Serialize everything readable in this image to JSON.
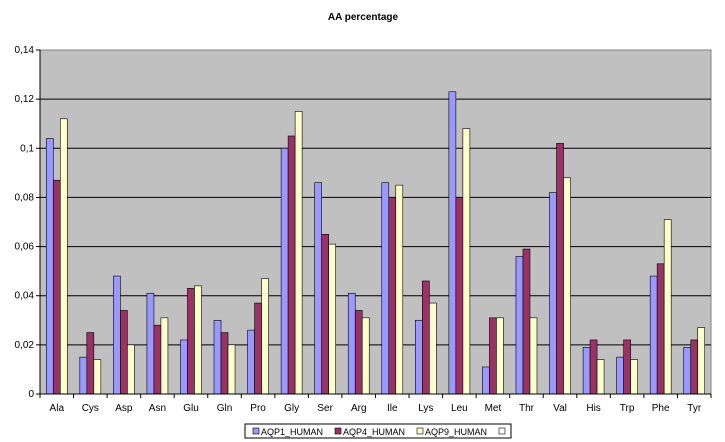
{
  "chart_data": {
    "type": "bar",
    "title": "AA percentage",
    "xlabel": "",
    "ylabel": "",
    "ylim": [
      0,
      0.14
    ],
    "yticks": [
      "0",
      "0,02",
      "0,04",
      "0,06",
      "0,08",
      "0,1",
      "0,12",
      "0,14"
    ],
    "grid": true,
    "legend_position": "bottom",
    "categories": [
      "Ala",
      "Cys",
      "Asp",
      "Asn",
      "Glu",
      "Gln",
      "Pro",
      "Gly",
      "Ser",
      "Arg",
      "Ile",
      "Lys",
      "Leu",
      "Met",
      "Thr",
      "Val",
      "His",
      "Trp",
      "Phe",
      "Tyr"
    ],
    "series": [
      {
        "name": "AQP1_HUMAN",
        "color": "#9999ff",
        "values": [
          0.104,
          0.015,
          0.048,
          0.041,
          0.022,
          0.03,
          0.026,
          0.1,
          0.086,
          0.041,
          0.086,
          0.03,
          0.123,
          0.011,
          0.056,
          0.082,
          0.019,
          0.015,
          0.048,
          0.019
        ]
      },
      {
        "name": "AQP4_HUMAN",
        "color": "#993366",
        "values": [
          0.087,
          0.025,
          0.034,
          0.028,
          0.043,
          0.025,
          0.037,
          0.105,
          0.065,
          0.034,
          0.08,
          0.046,
          0.08,
          0.031,
          0.059,
          0.102,
          0.022,
          0.022,
          0.053,
          0.022
        ]
      },
      {
        "name": "AQP9_HUMAN",
        "color": "#ffffcc",
        "values": [
          0.112,
          0.014,
          0.02,
          0.031,
          0.044,
          0.02,
          0.047,
          0.115,
          0.061,
          0.031,
          0.085,
          0.037,
          0.108,
          0.031,
          0.031,
          0.088,
          0.014,
          0.014,
          0.071,
          0.027
        ]
      }
    ],
    "legend_extra_entry": {
      "name": "",
      "color": "#ffffff"
    },
    "plot_background": "#c0c0c0"
  }
}
